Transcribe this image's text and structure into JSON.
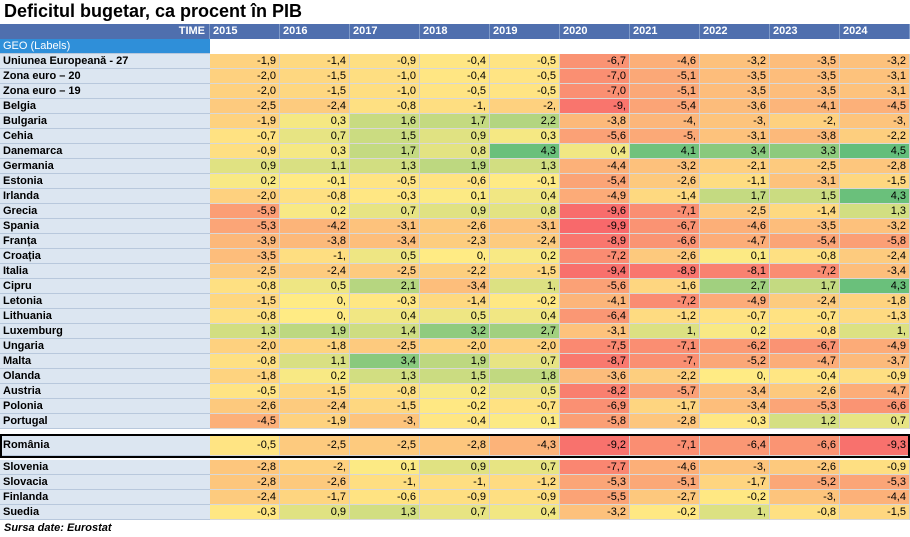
{
  "title": "Deficitul bugetar, ca procent în PIB",
  "source": "Sursa date: Eurostat",
  "colors": {
    "header_bg": "#4f6fae",
    "geo_bg": "#dce6f1",
    "geo_label_bg": "#2f8fd9",
    "scale_low": "#f8696b",
    "scale_mid": "#ffeb84",
    "scale_high": "#63be7b"
  },
  "chart_data": {
    "type": "table",
    "corner_label": "TIME",
    "geo_label": "GEO (Labels)",
    "years": [
      "2015",
      "2016",
      "2017",
      "2018",
      "2019",
      "2020",
      "2021",
      "2022",
      "2023",
      "2024"
    ],
    "color_scale": "red-yellow-green, low to high",
    "rows": [
      {
        "geo": "Uniunea Europeană - 27",
        "values": [
          "-1,9",
          "-1,4",
          "-0,9",
          "-0,4",
          "-0,5",
          "-6,7",
          "-4,6",
          "-3,2",
          "-3,5",
          "-3,2"
        ]
      },
      {
        "geo": "Zona euro – 20",
        "values": [
          "-2,0",
          "-1,5",
          "-1,0",
          "-0,4",
          "-0,5",
          "-7,0",
          "-5,1",
          "-3,5",
          "-3,5",
          "-3,1"
        ]
      },
      {
        "geo": "Zona euro – 19",
        "values": [
          "-2,0",
          "-1,5",
          "-1,0",
          "-0,5",
          "-0,5",
          "-7,0",
          "-5,1",
          "-3,5",
          "-3,5",
          "-3,1"
        ]
      },
      {
        "geo": "Belgia",
        "values": [
          "-2,5",
          "-2,4",
          "-0,8",
          "-1,",
          "-2,",
          "-9,",
          "-5,4",
          "-3,6",
          "-4,1",
          "-4,5"
        ]
      },
      {
        "geo": "Bulgaria",
        "values": [
          "-1,9",
          "0,3",
          "1,6",
          "1,7",
          "2,2",
          "-3,8",
          "-4,",
          "-3,",
          "-2,",
          "-3,"
        ]
      },
      {
        "geo": "Cehia",
        "values": [
          "-0,7",
          "0,7",
          "1,5",
          "0,9",
          "0,3",
          "-5,6",
          "-5,",
          "-3,1",
          "-3,8",
          "-2,2"
        ]
      },
      {
        "geo": "Danemarca",
        "values": [
          "-0,9",
          "0,3",
          "1,7",
          "0,8",
          "4,3",
          "0,4",
          "4,1",
          "3,4",
          "3,3",
          "4,5"
        ]
      },
      {
        "geo": "Germania",
        "values": [
          "0,9",
          "1,1",
          "1,3",
          "1,9",
          "1,3",
          "-4,4",
          "-3,2",
          "-2,1",
          "-2,5",
          "-2,8"
        ]
      },
      {
        "geo": "Estonia",
        "values": [
          "0,2",
          "-0,1",
          "-0,5",
          "-0,6",
          "-0,1",
          "-5,4",
          "-2,6",
          "-1,1",
          "-3,1",
          "-1,5"
        ]
      },
      {
        "geo": "Irlanda",
        "values": [
          "-2,0",
          "-0,8",
          "-0,3",
          "0,1",
          "0,4",
          "-4,9",
          "-1,4",
          "1,7",
          "1,5",
          "4,3"
        ]
      },
      {
        "geo": "Grecia",
        "values": [
          "-5,9",
          "0,2",
          "0,7",
          "0,9",
          "0,8",
          "-9,6",
          "-7,1",
          "-2,5",
          "-1,4",
          "1,3"
        ]
      },
      {
        "geo": "Spania",
        "values": [
          "-5,3",
          "-4,2",
          "-3,1",
          "-2,6",
          "-3,1",
          "-9,9",
          "-6,7",
          "-4,6",
          "-3,5",
          "-3,2"
        ]
      },
      {
        "geo": "Franța",
        "values": [
          "-3,9",
          "-3,8",
          "-3,4",
          "-2,3",
          "-2,4",
          "-8,9",
          "-6,6",
          "-4,7",
          "-5,4",
          "-5,8"
        ]
      },
      {
        "geo": "Croația",
        "values": [
          "-3,5",
          "-1,",
          "0,5",
          "0,",
          "0,2",
          "-7,2",
          "-2,6",
          "0,1",
          "-0,8",
          "-2,4"
        ]
      },
      {
        "geo": "Italia",
        "values": [
          "-2,5",
          "-2,4",
          "-2,5",
          "-2,2",
          "-1,5",
          "-9,4",
          "-8,9",
          "-8,1",
          "-7,2",
          "-3,4"
        ]
      },
      {
        "geo": "Cipru",
        "values": [
          "-0,8",
          "0,5",
          "2,1",
          "-3,4",
          "1,",
          "-5,6",
          "-1,6",
          "2,7",
          "1,7",
          "4,3"
        ]
      },
      {
        "geo": "Letonia",
        "values": [
          "-1,5",
          "0,",
          "-0,3",
          "-1,4",
          "-0,2",
          "-4,1",
          "-7,2",
          "-4,9",
          "-2,4",
          "-1,8"
        ]
      },
      {
        "geo": "Lithuania",
        "values": [
          "-0,8",
          "0,",
          "0,4",
          "0,5",
          "0,4",
          "-6,4",
          "-1,2",
          "-0,7",
          "-0,7",
          "-1,3"
        ]
      },
      {
        "geo": "Luxemburg",
        "values": [
          "1,3",
          "1,9",
          "1,4",
          "3,2",
          "2,7",
          "-3,1",
          "1,",
          "0,2",
          "-0,8",
          "1,"
        ]
      },
      {
        "geo": "Ungaria",
        "values": [
          "-2,0",
          "-1,8",
          "-2,5",
          "-2,0",
          "-2,0",
          "-7,5",
          "-7,1",
          "-6,2",
          "-6,7",
          "-4,9"
        ]
      },
      {
        "geo": "Malta",
        "values": [
          "-0,8",
          "1,1",
          "3,4",
          "1,9",
          "0,7",
          "-8,7",
          "-7,",
          "-5,2",
          "-4,7",
          "-3,7"
        ]
      },
      {
        "geo": "Olanda",
        "values": [
          "-1,8",
          "0,2",
          "1,3",
          "1,5",
          "1,8",
          "-3,6",
          "-2,2",
          "0,",
          "-0,4",
          "-0,9"
        ]
      },
      {
        "geo": "Austria",
        "values": [
          "-0,5",
          "-1,5",
          "-0,8",
          "0,2",
          "0,5",
          "-8,2",
          "-5,7",
          "-3,4",
          "-2,6",
          "-4,7"
        ]
      },
      {
        "geo": "Polonia",
        "values": [
          "-2,6",
          "-2,4",
          "-1,5",
          "-0,2",
          "-0,7",
          "-6,9",
          "-1,7",
          "-3,4",
          "-5,3",
          "-6,6"
        ]
      },
      {
        "geo": "Portugal",
        "values": [
          "-4,5",
          "-1,9",
          "-3,",
          "-0,4",
          "0,1",
          "-5,8",
          "-2,8",
          "-0,3",
          "1,2",
          "0,7"
        ]
      },
      {
        "geo": "România",
        "values": [
          "-0,5",
          "-2,5",
          "-2,5",
          "-2,8",
          "-4,3",
          "-9,2",
          "-7,1",
          "-6,4",
          "-6,6",
          "-9,3"
        ],
        "highlight": true
      },
      {
        "geo": "Slovenia",
        "values": [
          "-2,8",
          "-2,",
          "0,1",
          "0,9",
          "0,7",
          "-7,7",
          "-4,6",
          "-3,",
          "-2,6",
          "-0,9"
        ]
      },
      {
        "geo": "Slovacia",
        "values": [
          "-2,8",
          "-2,6",
          "-1,",
          "-1,",
          "-1,2",
          "-5,3",
          "-5,1",
          "-1,7",
          "-5,2",
          "-5,3"
        ]
      },
      {
        "geo": "Finlanda",
        "values": [
          "-2,4",
          "-1,7",
          "-0,6",
          "-0,9",
          "-0,9",
          "-5,5",
          "-2,7",
          "-0,2",
          "-3,",
          "-4,4"
        ]
      },
      {
        "geo": "Suedia",
        "values": [
          "-0,3",
          "0,9",
          "1,3",
          "0,7",
          "0,4",
          "-3,2",
          "-0,2",
          "1,",
          "-0,8",
          "-1,5"
        ]
      }
    ]
  }
}
